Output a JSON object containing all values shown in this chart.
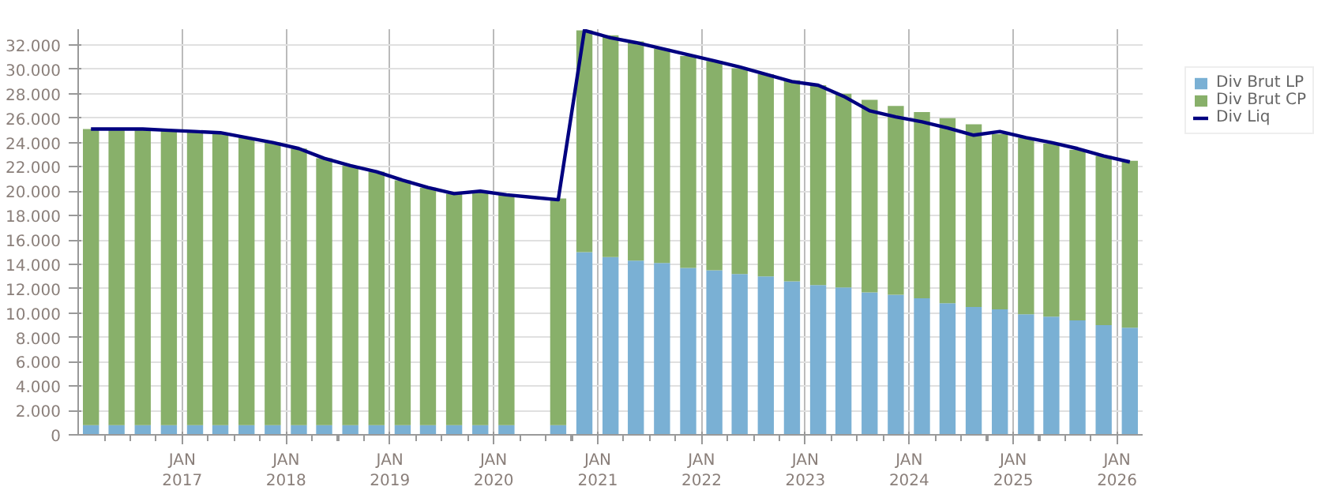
{
  "chart_data": {
    "type": "bar",
    "stacked": true,
    "x": [
      "2016-02-15",
      "2016-05-15",
      "2016-08-15",
      "2016-11-15",
      "2017-02-15",
      "2017-05-15",
      "2017-08-15",
      "2017-11-15",
      "2018-02-15",
      "2018-05-15",
      "2018-08-15",
      "2018-11-15",
      "2019-02-15",
      "2019-05-15",
      "2019-08-15",
      "2019-11-15",
      "2020-02-15",
      "2020-05-15",
      "2020-08-15",
      "2020-11-15",
      "2021-02-15",
      "2021-05-15",
      "2021-08-15",
      "2021-11-15",
      "2022-02-15",
      "2022-05-15",
      "2022-08-15",
      "2022-11-15",
      "2023-02-15",
      "2023-05-15",
      "2023-08-15",
      "2023-11-15",
      "2024-02-15",
      "2024-05-15",
      "2024-08-15",
      "2024-11-15",
      "2025-02-15",
      "2025-05-15",
      "2025-08-15",
      "2025-11-15",
      "2026-02-15"
    ],
    "series": [
      {
        "name": "Div Brut LP",
        "color": "#7ab0d4",
        "values": [
          800,
          800,
          800,
          800,
          800,
          800,
          800,
          800,
          800,
          800,
          800,
          800,
          800,
          800,
          800,
          800,
          800,
          null,
          800,
          15000,
          14600,
          14300,
          14100,
          13700,
          13500,
          13200,
          13000,
          12600,
          12300,
          12100,
          11700,
          11500,
          11200,
          10800,
          10500,
          10300,
          9900,
          9700,
          9400,
          9000,
          8800
        ]
      },
      {
        "name": "Div Brut CP",
        "color": "#88b06a",
        "values": [
          24300,
          24300,
          24400,
          24200,
          24100,
          24000,
          23600,
          23200,
          22700,
          21900,
          21300,
          20800,
          20100,
          19500,
          19000,
          19200,
          18900,
          null,
          18600,
          18200,
          18200,
          18000,
          17600,
          17400,
          17200,
          16900,
          16600,
          16500,
          16400,
          15900,
          15800,
          15500,
          15300,
          15200,
          15000,
          14400,
          14500,
          14200,
          14000,
          13900,
          13700
        ]
      },
      {
        "name": "Div Liq",
        "color": "#000080",
        "type": "line",
        "values": [
          25100,
          25100,
          25100,
          25000,
          24900,
          24800,
          24400,
          24000,
          23500,
          22700,
          22100,
          21600,
          20900,
          20300,
          19800,
          20000,
          19700,
          19500,
          19300,
          33200,
          32600,
          32200,
          31700,
          31200,
          30700,
          30200,
          29600,
          29000,
          28700,
          27800,
          26600,
          26100,
          25700,
          25200,
          24600,
          24900,
          24400,
          24000,
          23500,
          22900,
          22400
        ]
      }
    ],
    "xlim": [
      "2016-01-01",
      "2026-04-01"
    ],
    "xticks": [
      {
        "value": "2017-01-01",
        "label": "JAN\n2017"
      },
      {
        "value": "2018-01-01",
        "label": "JAN\n2018"
      },
      {
        "value": "2019-01-01",
        "label": "JAN\n2019"
      },
      {
        "value": "2020-01-01",
        "label": "JAN\n2020"
      },
      {
        "value": "2021-01-01",
        "label": "JAN\n2021"
      },
      {
        "value": "2022-01-01",
        "label": "JAN\n2022"
      },
      {
        "value": "2023-01-01",
        "label": "JAN\n2023"
      },
      {
        "value": "2024-01-01",
        "label": "JAN\n2024"
      },
      {
        "value": "2025-01-01",
        "label": "JAN\n2025"
      },
      {
        "value": "2026-01-01",
        "label": "JAN\n2026"
      }
    ],
    "ylim": [
      0,
      33300
    ],
    "yticks": [
      0,
      {
        "value": 2000,
        "label": "2.000"
      },
      {
        "value": 4000,
        "label": "4.000"
      },
      {
        "value": 6000,
        "label": "6.000"
      },
      {
        "value": 8000,
        "label": "8.000"
      },
      {
        "value": 10000,
        "label": "10.000"
      },
      {
        "value": 12000,
        "label": "12.000"
      },
      {
        "value": 14000,
        "label": "14.000"
      },
      {
        "value": 16000,
        "label": "16.000"
      },
      {
        "value": 18000,
        "label": "18.000"
      },
      {
        "value": 20000,
        "label": "20.000"
      },
      {
        "value": 22000,
        "label": "22.000"
      },
      {
        "value": 24000,
        "label": "24.000"
      },
      {
        "value": 26000,
        "label": "26.000"
      },
      {
        "value": 28000,
        "label": "28.000"
      },
      {
        "value": 30000,
        "label": "30.000"
      },
      {
        "value": 32000,
        "label": "32.000"
      }
    ],
    "grid": true,
    "legend": "top right"
  }
}
